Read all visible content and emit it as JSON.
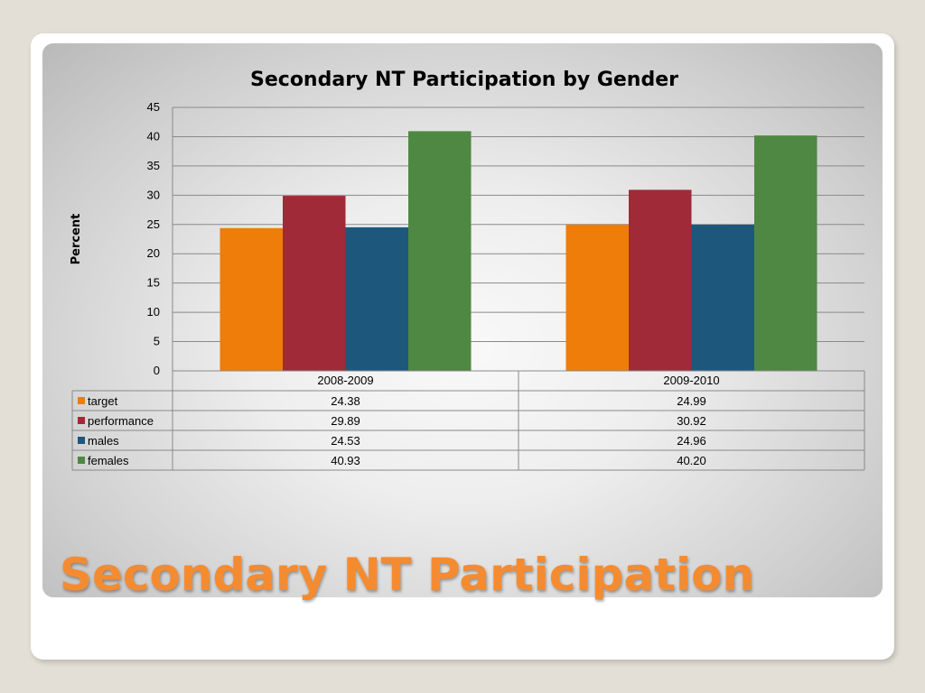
{
  "slide": {
    "title": "Secondary NT Participation"
  },
  "colors": {
    "target": "#ee7d0a",
    "performance": "#a02a38",
    "males": "#1d587c",
    "females": "#4f8842",
    "title_accent": "#f58b30"
  },
  "chart_data": {
    "type": "bar",
    "title": "Secondary NT Participation by Gender",
    "ylabel": "Percent",
    "xlabel": "",
    "ylim": [
      0,
      45
    ],
    "yticks": [
      0,
      5,
      10,
      15,
      20,
      25,
      30,
      35,
      40,
      45
    ],
    "grid": true,
    "legend": "data-table",
    "categories": [
      "2008-2009",
      "2009-2010"
    ],
    "series": [
      {
        "name": "target",
        "color": "#ee7d0a",
        "values": [
          24.38,
          24.99
        ],
        "labels": [
          "24.38",
          "24.99"
        ]
      },
      {
        "name": "performance",
        "color": "#a02a38",
        "values": [
          29.89,
          30.92
        ],
        "labels": [
          "29.89",
          "30.92"
        ]
      },
      {
        "name": "males",
        "color": "#1d587c",
        "values": [
          24.53,
          24.96
        ],
        "labels": [
          "24.53",
          "24.96"
        ]
      },
      {
        "name": "females",
        "color": "#4f8842",
        "values": [
          40.93,
          40.2
        ],
        "labels": [
          "40.93",
          "40.20"
        ]
      }
    ]
  }
}
